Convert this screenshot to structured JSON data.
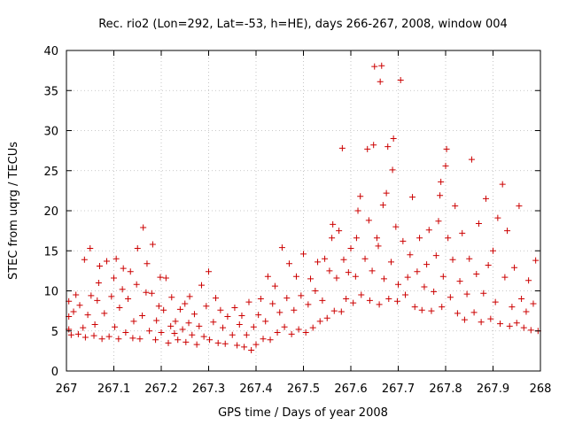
{
  "chart_data": {
    "type": "scatter",
    "title": "Rec. rio2 (Lon=292, Lat=-53, h=HE), days 266-267, 2008, window 004",
    "xlabel": "GPS time / Days of year 2008",
    "ylabel": "STEC from uqrg / TECUs",
    "xlim": [
      267,
      268
    ],
    "ylim": [
      0,
      40
    ],
    "x_ticks": [
      "267",
      "267.1",
      "267.2",
      "267.3",
      "267.4",
      "267.5",
      "267.6",
      "267.7",
      "267.8",
      "267.9",
      "268"
    ],
    "y_ticks": [
      "0",
      "5",
      "10",
      "15",
      "20",
      "25",
      "30",
      "35",
      "40"
    ],
    "grid": true,
    "marker": "+",
    "color": "#cc0000",
    "series": [
      {
        "name": "STEC",
        "points": [
          [
            267.005,
            5.2
          ],
          [
            267.005,
            6.8
          ],
          [
            267.005,
            8.7
          ],
          [
            267.01,
            4.5
          ],
          [
            267.015,
            7.4
          ],
          [
            267.02,
            9.5
          ],
          [
            267.025,
            4.6
          ],
          [
            267.028,
            8.2
          ],
          [
            267.035,
            5.4
          ],
          [
            267.038,
            13.9
          ],
          [
            267.04,
            4.2
          ],
          [
            267.045,
            7.0
          ],
          [
            267.05,
            15.3
          ],
          [
            267.052,
            9.4
          ],
          [
            267.058,
            4.4
          ],
          [
            267.06,
            5.8
          ],
          [
            267.065,
            8.8
          ],
          [
            267.068,
            11.0
          ],
          [
            267.07,
            13.1
          ],
          [
            267.075,
            4.0
          ],
          [
            267.08,
            7.2
          ],
          [
            267.085,
            13.7
          ],
          [
            267.09,
            4.3
          ],
          [
            267.095,
            9.3
          ],
          [
            267.1,
            11.6
          ],
          [
            267.102,
            5.5
          ],
          [
            267.105,
            14.0
          ],
          [
            267.11,
            4.0
          ],
          [
            267.112,
            7.9
          ],
          [
            267.118,
            10.2
          ],
          [
            267.12,
            12.8
          ],
          [
            267.125,
            4.8
          ],
          [
            267.13,
            9.0
          ],
          [
            267.135,
            12.4
          ],
          [
            267.14,
            4.1
          ],
          [
            267.142,
            6.2
          ],
          [
            267.148,
            10.8
          ],
          [
            267.15,
            15.3
          ],
          [
            267.155,
            4.0
          ],
          [
            267.16,
            6.9
          ],
          [
            267.162,
            17.9
          ],
          [
            267.168,
            9.8
          ],
          [
            267.17,
            13.4
          ],
          [
            267.175,
            5.0
          ],
          [
            267.18,
            9.7
          ],
          [
            267.182,
            15.8
          ],
          [
            267.188,
            3.9
          ],
          [
            267.19,
            6.3
          ],
          [
            267.195,
            8.1
          ],
          [
            267.198,
            11.7
          ],
          [
            267.2,
            4.8
          ],
          [
            267.205,
            7.6
          ],
          [
            267.21,
            11.6
          ],
          [
            267.215,
            3.5
          ],
          [
            267.22,
            5.6
          ],
          [
            267.222,
            9.2
          ],
          [
            267.228,
            4.7
          ],
          [
            267.23,
            6.2
          ],
          [
            267.235,
            3.9
          ],
          [
            267.24,
            7.7
          ],
          [
            267.245,
            5.2
          ],
          [
            267.25,
            8.4
          ],
          [
            267.252,
            3.6
          ],
          [
            267.258,
            6.0
          ],
          [
            267.26,
            9.3
          ],
          [
            267.265,
            4.5
          ],
          [
            267.27,
            7.1
          ],
          [
            267.275,
            3.3
          ],
          [
            267.28,
            5.6
          ],
          [
            267.285,
            10.7
          ],
          [
            267.29,
            4.3
          ],
          [
            267.295,
            8.1
          ],
          [
            267.3,
            12.4
          ],
          [
            267.302,
            3.9
          ],
          [
            267.31,
            6.1
          ],
          [
            267.315,
            9.1
          ],
          [
            267.32,
            3.5
          ],
          [
            267.325,
            7.6
          ],
          [
            267.33,
            5.4
          ],
          [
            267.335,
            3.4
          ],
          [
            267.34,
            6.8
          ],
          [
            267.35,
            4.5
          ],
          [
            267.355,
            7.9
          ],
          [
            267.36,
            3.2
          ],
          [
            267.365,
            5.8
          ],
          [
            267.37,
            6.9
          ],
          [
            267.375,
            3.0
          ],
          [
            267.38,
            4.5
          ],
          [
            267.385,
            8.6
          ],
          [
            267.39,
            2.6
          ],
          [
            267.395,
            5.5
          ],
          [
            267.4,
            3.3
          ],
          [
            267.405,
            7.0
          ],
          [
            267.41,
            9.0
          ],
          [
            267.415,
            4.0
          ],
          [
            267.42,
            6.2
          ],
          [
            267.425,
            11.8
          ],
          [
            267.43,
            3.9
          ],
          [
            267.435,
            8.4
          ],
          [
            267.44,
            10.6
          ],
          [
            267.445,
            4.8
          ],
          [
            267.45,
            7.3
          ],
          [
            267.455,
            15.4
          ],
          [
            267.46,
            5.5
          ],
          [
            267.465,
            9.1
          ],
          [
            267.47,
            13.4
          ],
          [
            267.475,
            4.6
          ],
          [
            267.48,
            7.6
          ],
          [
            267.485,
            11.8
          ],
          [
            267.49,
            5.2
          ],
          [
            267.495,
            9.4
          ],
          [
            267.5,
            14.6
          ],
          [
            267.505,
            4.8
          ],
          [
            267.51,
            8.3
          ],
          [
            267.515,
            11.5
          ],
          [
            267.52,
            5.4
          ],
          [
            267.525,
            10.0
          ],
          [
            267.53,
            13.6
          ],
          [
            267.535,
            6.2
          ],
          [
            267.54,
            8.8
          ],
          [
            267.545,
            14.0
          ],
          [
            267.55,
            6.6
          ],
          [
            267.555,
            12.5
          ],
          [
            267.56,
            16.6
          ],
          [
            267.562,
            18.3
          ],
          [
            267.565,
            7.5
          ],
          [
            267.57,
            11.6
          ],
          [
            267.575,
            17.5
          ],
          [
            267.58,
            7.4
          ],
          [
            267.582,
            27.8
          ],
          [
            267.585,
            13.9
          ],
          [
            267.59,
            9.0
          ],
          [
            267.595,
            12.3
          ],
          [
            267.6,
            15.3
          ],
          [
            267.605,
            8.5
          ],
          [
            267.61,
            11.8
          ],
          [
            267.612,
            16.6
          ],
          [
            267.615,
            20.0
          ],
          [
            267.62,
            21.8
          ],
          [
            267.622,
            9.5
          ],
          [
            267.63,
            14.0
          ],
          [
            267.635,
            27.7
          ],
          [
            267.638,
            18.8
          ],
          [
            267.64,
            8.8
          ],
          [
            267.645,
            12.5
          ],
          [
            267.648,
            28.2
          ],
          [
            267.65,
            38.0
          ],
          [
            267.655,
            16.6
          ],
          [
            267.658,
            15.6
          ],
          [
            267.66,
            8.3
          ],
          [
            267.662,
            36.1
          ],
          [
            267.665,
            38.1
          ],
          [
            267.668,
            20.7
          ],
          [
            267.67,
            11.5
          ],
          [
            267.675,
            22.2
          ],
          [
            267.678,
            28.0
          ],
          [
            267.68,
            9.0
          ],
          [
            267.685,
            13.6
          ],
          [
            267.688,
            25.1
          ],
          [
            267.69,
            29.0
          ],
          [
            267.695,
            18.0
          ],
          [
            267.698,
            8.7
          ],
          [
            267.7,
            10.8
          ],
          [
            267.705,
            36.3
          ],
          [
            267.71,
            16.2
          ],
          [
            267.715,
            9.5
          ],
          [
            267.72,
            11.7
          ],
          [
            267.725,
            14.5
          ],
          [
            267.73,
            21.7
          ],
          [
            267.735,
            8.0
          ],
          [
            267.74,
            12.4
          ],
          [
            267.745,
            16.6
          ],
          [
            267.75,
            7.6
          ],
          [
            267.755,
            10.5
          ],
          [
            267.76,
            13.3
          ],
          [
            267.765,
            17.6
          ],
          [
            267.77,
            7.5
          ],
          [
            267.775,
            9.9
          ],
          [
            267.78,
            14.4
          ],
          [
            267.785,
            18.7
          ],
          [
            267.788,
            21.9
          ],
          [
            267.79,
            23.6
          ],
          [
            267.792,
            8.0
          ],
          [
            267.795,
            11.8
          ],
          [
            267.8,
            25.6
          ],
          [
            267.802,
            27.7
          ],
          [
            267.805,
            16.6
          ],
          [
            267.81,
            9.2
          ],
          [
            267.815,
            13.9
          ],
          [
            267.82,
            20.6
          ],
          [
            267.825,
            7.2
          ],
          [
            267.83,
            11.2
          ],
          [
            267.835,
            17.2
          ],
          [
            267.84,
            6.4
          ],
          [
            267.845,
            9.6
          ],
          [
            267.85,
            14.0
          ],
          [
            267.855,
            26.4
          ],
          [
            267.86,
            7.3
          ],
          [
            267.865,
            12.1
          ],
          [
            267.87,
            18.4
          ],
          [
            267.875,
            6.1
          ],
          [
            267.88,
            9.7
          ],
          [
            267.885,
            21.5
          ],
          [
            267.89,
            13.2
          ],
          [
            267.895,
            6.5
          ],
          [
            267.9,
            15.0
          ],
          [
            267.905,
            8.6
          ],
          [
            267.91,
            19.1
          ],
          [
            267.915,
            5.9
          ],
          [
            267.92,
            23.3
          ],
          [
            267.925,
            11.7
          ],
          [
            267.93,
            17.5
          ],
          [
            267.935,
            5.6
          ],
          [
            267.94,
            8.0
          ],
          [
            267.945,
            12.9
          ],
          [
            267.95,
            6.0
          ],
          [
            267.955,
            20.6
          ],
          [
            267.96,
            9.0
          ],
          [
            267.965,
            5.4
          ],
          [
            267.97,
            7.4
          ],
          [
            267.975,
            11.3
          ],
          [
            267.98,
            5.1
          ],
          [
            267.985,
            8.4
          ],
          [
            267.99,
            13.8
          ],
          [
            267.995,
            5.0
          ]
        ]
      }
    ]
  }
}
